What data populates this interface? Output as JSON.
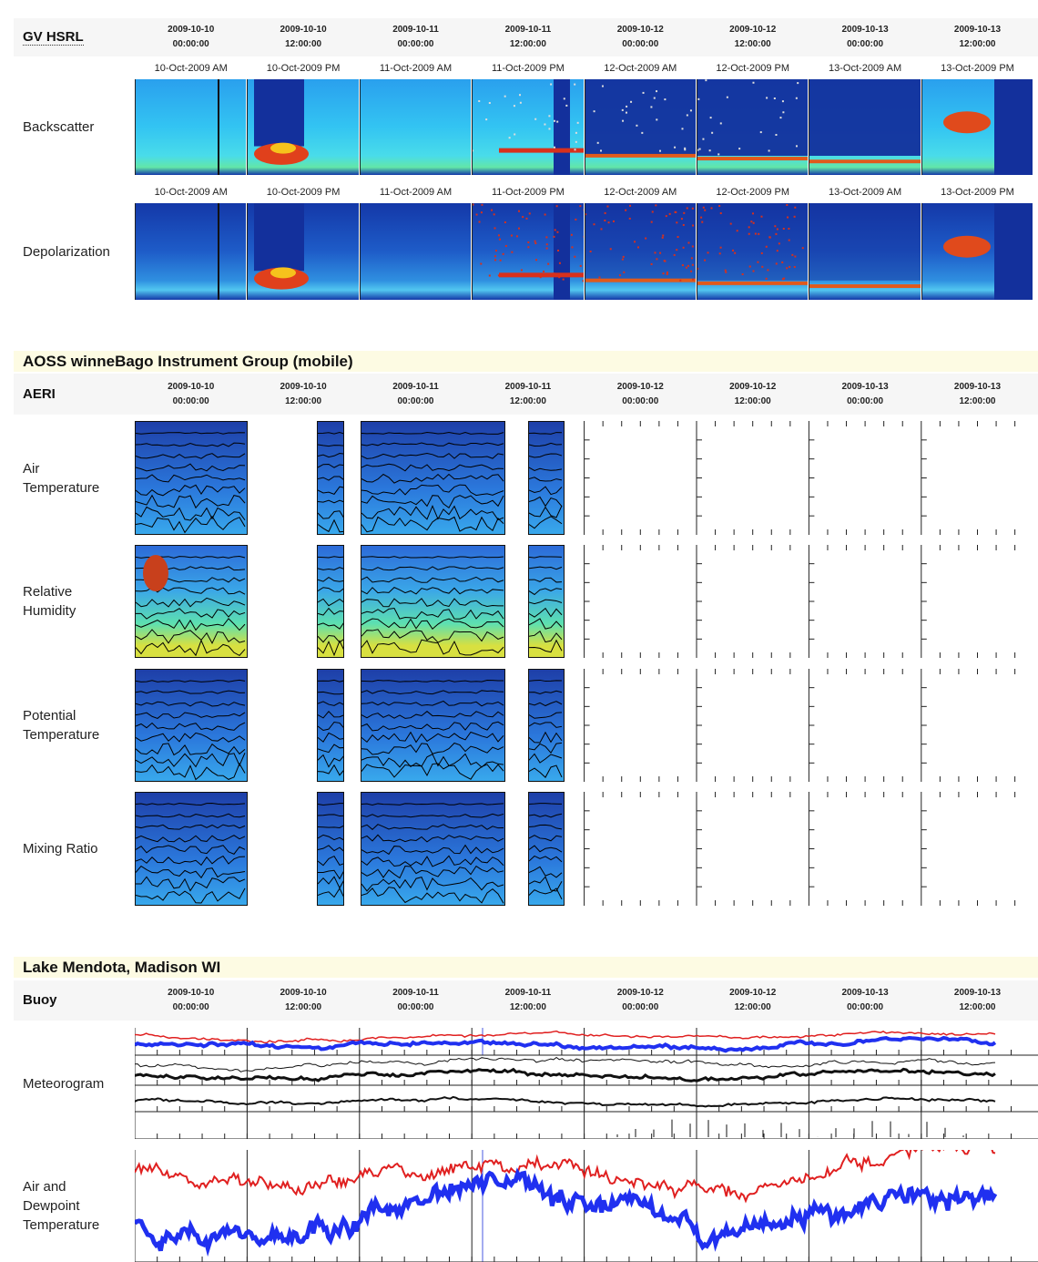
{
  "columns": [
    {
      "date": "2009-10-10",
      "time": "00:00:00"
    },
    {
      "date": "2009-10-10",
      "time": "12:00:00"
    },
    {
      "date": "2009-10-11",
      "time": "00:00:00"
    },
    {
      "date": "2009-10-11",
      "time": "12:00:00"
    },
    {
      "date": "2009-10-12",
      "time": "00:00:00"
    },
    {
      "date": "2009-10-12",
      "time": "12:00:00"
    },
    {
      "date": "2009-10-13",
      "time": "00:00:00"
    },
    {
      "date": "2009-10-13",
      "time": "12:00:00"
    }
  ],
  "panel_labels": [
    "10-Oct-2009 AM",
    "10-Oct-2009 PM",
    "11-Oct-2009 AM",
    "11-Oct-2009 PM",
    "12-Oct-2009 AM",
    "12-Oct-2009 PM",
    "13-Oct-2009 AM",
    "13-Oct-2009 PM"
  ],
  "sections": [
    {
      "header": "GV HSRL",
      "rows": [
        "Backscatter",
        "Depolarization"
      ]
    },
    {
      "title": "AOSS winneBago Instrument Group (mobile)",
      "header": "AERI",
      "rows": [
        "Air Temperature",
        "Relative Humidity",
        "Potential Temperature",
        "Mixing Ratio"
      ]
    },
    {
      "title": "Lake Mendota, Madison WI",
      "header": "Buoy",
      "rows": [
        "Meteorogram",
        "Air and Dewpoint Temperature"
      ]
    }
  ]
}
